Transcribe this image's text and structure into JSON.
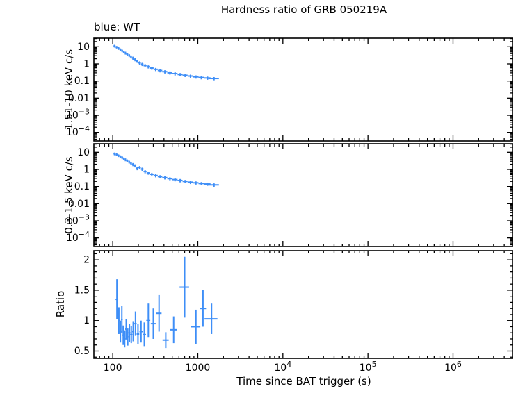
{
  "chart_data": {
    "type": "scatter",
    "title": "Hardness ratio of GRB 050219A",
    "annotation": "blue: WT",
    "series": "WT",
    "point_color": "#3E8EF7",
    "xlabel": "Time since BAT trigger (s)",
    "x_scale": "log",
    "x_range": [
      60,
      5000000
    ],
    "x_ticks": [
      {
        "value": 100,
        "label": "100"
      },
      {
        "value": 1000,
        "label": "1000"
      },
      {
        "value": 10000,
        "label": "10^4"
      },
      {
        "value": 100000,
        "label": "10^5"
      },
      {
        "value": 1000000,
        "label": "10^6"
      }
    ],
    "points_format": [
      "x",
      "xerr",
      "y",
      "yerr"
    ],
    "panels": [
      {
        "name": "hard-band",
        "ylabel": "1.51-10 keV c/s",
        "y_scale": "log",
        "y_range": [
          3.16e-05,
          31.6
        ],
        "y_ticks": [
          {
            "value": 10,
            "label": "10"
          },
          {
            "value": 1,
            "label": "1"
          },
          {
            "value": 0.1,
            "label": "0.1"
          },
          {
            "value": 0.01,
            "label": "0.01"
          },
          {
            "value": 0.001,
            "label": "10^-3"
          },
          {
            "value": 0.0001,
            "label": "10^-4"
          }
        ],
        "points": [
          [
            105,
            3,
            11,
            2
          ],
          [
            111,
            3,
            9.5,
            1.6
          ],
          [
            117,
            3,
            8,
            1.4
          ],
          [
            123,
            3,
            6.8,
            1.2
          ],
          [
            129,
            3,
            5.8,
            1.0
          ],
          [
            135,
            3,
            5.0,
            0.9
          ],
          [
            141,
            3,
            4.3,
            0.8
          ],
          [
            148,
            4,
            3.7,
            0.7
          ],
          [
            156,
            4,
            3.1,
            0.6
          ],
          [
            164,
            4,
            2.6,
            0.5
          ],
          [
            173,
            5,
            2.2,
            0.45
          ],
          [
            183,
            5,
            1.8,
            0.38
          ],
          [
            194,
            6,
            1.45,
            0.3
          ],
          [
            207,
            7,
            1.15,
            0.25
          ],
          [
            222,
            8,
            0.95,
            0.2
          ],
          [
            240,
            10,
            0.8,
            0.17
          ],
          [
            262,
            12,
            0.68,
            0.14
          ],
          [
            288,
            14,
            0.57,
            0.12
          ],
          [
            320,
            18,
            0.48,
            0.1
          ],
          [
            360,
            22,
            0.41,
            0.09
          ],
          [
            410,
            28,
            0.35,
            0.075
          ],
          [
            470,
            32,
            0.3,
            0.065
          ],
          [
            540,
            38,
            0.27,
            0.06
          ],
          [
            620,
            42,
            0.24,
            0.05
          ],
          [
            710,
            48,
            0.215,
            0.045
          ],
          [
            820,
            60,
            0.195,
            0.04
          ],
          [
            950,
            70,
            0.175,
            0.038
          ],
          [
            1100,
            80,
            0.16,
            0.035
          ],
          [
            1300,
            110,
            0.15,
            0.032
          ],
          [
            1550,
            220,
            0.14,
            0.03
          ]
        ]
      },
      {
        "name": "soft-band",
        "ylabel": "0.3-1.5 keV c/s",
        "y_scale": "log",
        "y_range": [
          3.16e-05,
          31.6
        ],
        "y_ticks": [
          {
            "value": 10,
            "label": "10"
          },
          {
            "value": 1,
            "label": "1"
          },
          {
            "value": 0.1,
            "label": "0.1"
          },
          {
            "value": 0.01,
            "label": "0.01"
          },
          {
            "value": 0.001,
            "label": "10^-3"
          },
          {
            "value": 0.0001,
            "label": "10^-4"
          }
        ],
        "points": [
          [
            105,
            3,
            8.2,
            1.5
          ],
          [
            111,
            3,
            7.3,
            1.3
          ],
          [
            117,
            3,
            6.4,
            1.1
          ],
          [
            123,
            3,
            5.6,
            1.0
          ],
          [
            129,
            3,
            4.9,
            0.9
          ],
          [
            135,
            3,
            4.2,
            0.8
          ],
          [
            141,
            3,
            3.7,
            0.7
          ],
          [
            148,
            4,
            3.2,
            0.6
          ],
          [
            156,
            4,
            2.7,
            0.5
          ],
          [
            164,
            4,
            2.3,
            0.45
          ],
          [
            173,
            5,
            1.95,
            0.4
          ],
          [
            183,
            5,
            1.65,
            0.34
          ],
          [
            194,
            6,
            1.15,
            0.25
          ],
          [
            207,
            7,
            1.3,
            0.27
          ],
          [
            222,
            8,
            1.05,
            0.22
          ],
          [
            240,
            10,
            0.75,
            0.16
          ],
          [
            262,
            12,
            0.62,
            0.13
          ],
          [
            288,
            14,
            0.52,
            0.11
          ],
          [
            320,
            18,
            0.44,
            0.095
          ],
          [
            360,
            22,
            0.38,
            0.08
          ],
          [
            410,
            28,
            0.33,
            0.07
          ],
          [
            470,
            32,
            0.29,
            0.06
          ],
          [
            540,
            38,
            0.255,
            0.055
          ],
          [
            620,
            42,
            0.225,
            0.05
          ],
          [
            710,
            48,
            0.2,
            0.042
          ],
          [
            820,
            60,
            0.18,
            0.04
          ],
          [
            950,
            70,
            0.165,
            0.035
          ],
          [
            1100,
            80,
            0.15,
            0.032
          ],
          [
            1300,
            110,
            0.14,
            0.03
          ],
          [
            1550,
            220,
            0.125,
            0.028
          ]
        ]
      },
      {
        "name": "ratio",
        "ylabel": "Ratio",
        "y_scale": "linear",
        "y_range": [
          0.38,
          2.15
        ],
        "y_ticks": [
          {
            "value": 0.5,
            "label": "0.5"
          },
          {
            "value": 1,
            "label": "1"
          },
          {
            "value": 1.5,
            "label": "1.5"
          },
          {
            "value": 2,
            "label": "2"
          }
        ],
        "points": [
          [
            112,
            4,
            1.35,
            0.33
          ],
          [
            118,
            3,
            1.0,
            0.22
          ],
          [
            123,
            3,
            0.82,
            0.18
          ],
          [
            128,
            3,
            1.02,
            0.22
          ],
          [
            133,
            3,
            0.76,
            0.16
          ],
          [
            138,
            3,
            0.7,
            0.14
          ],
          [
            144,
            4,
            0.86,
            0.17
          ],
          [
            150,
            4,
            0.73,
            0.14
          ],
          [
            157,
            4,
            0.8,
            0.15
          ],
          [
            165,
            5,
            0.77,
            0.14
          ],
          [
            174,
            5,
            0.82,
            0.16
          ],
          [
            185,
            6,
            0.95,
            0.2
          ],
          [
            198,
            7,
            0.78,
            0.16
          ],
          [
            215,
            9,
            0.82,
            0.18
          ],
          [
            235,
            11,
            0.77,
            0.2
          ],
          [
            262,
            14,
            1.0,
            0.28
          ],
          [
            300,
            20,
            0.95,
            0.25
          ],
          [
            350,
            25,
            1.12,
            0.3
          ],
          [
            420,
            35,
            0.68,
            0.13
          ],
          [
            520,
            50,
            0.85,
            0.22
          ],
          [
            700,
            90,
            1.55,
            0.5
          ],
          [
            950,
            120,
            0.9,
            0.28
          ],
          [
            1150,
            100,
            1.2,
            0.3
          ],
          [
            1450,
            250,
            1.03,
            0.25
          ]
        ]
      }
    ]
  }
}
